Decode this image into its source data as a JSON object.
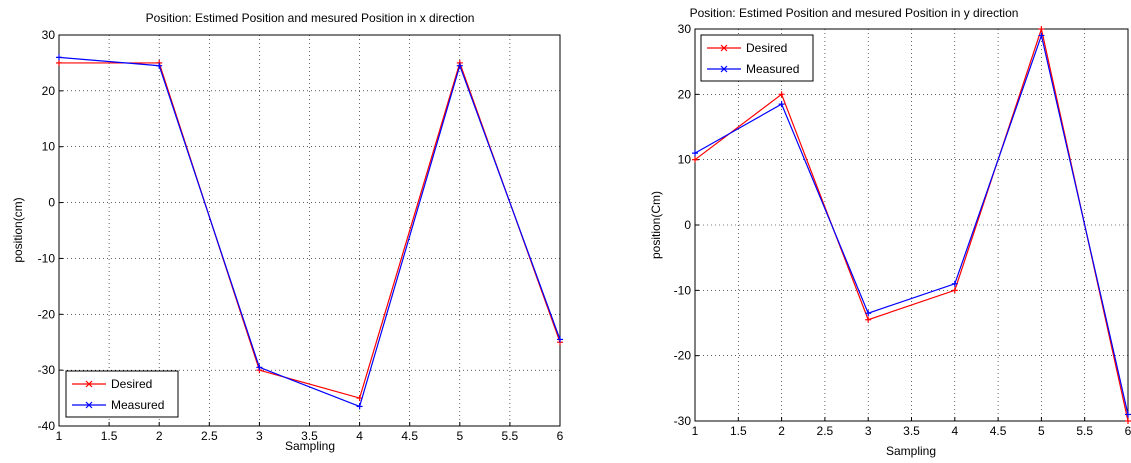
{
  "chart_data": [
    {
      "type": "line",
      "title": "Position: Estimed Position and mesured Position in x direction",
      "xlabel": "Sampling",
      "ylabel": "position(cm)",
      "xlim": [
        1,
        6
      ],
      "ylim": [
        -40,
        30
      ],
      "xticks": [
        "1",
        "1.5",
        "2",
        "2.5",
        "3",
        "3.5",
        "4",
        "4.5",
        "5",
        "5.5",
        "6"
      ],
      "yticks": [
        "30",
        "20",
        "10",
        "0",
        "-10",
        "-20",
        "-30",
        "-40"
      ],
      "grid": true,
      "legend_position": "bottom-left",
      "x": [
        1,
        2,
        3,
        4,
        5,
        6
      ],
      "series": [
        {
          "name": "Desired",
          "color": "#ff0000",
          "values": [
            25,
            25,
            -30,
            -35,
            25,
            -25
          ]
        },
        {
          "name": "Measured",
          "color": "#0000ff",
          "values": [
            26,
            24.5,
            -29.5,
            -36.5,
            24.5,
            -24.5
          ]
        }
      ]
    },
    {
      "type": "line",
      "title": "Position: Estimed Position and mesured Position in y direction",
      "xlabel": "Sampling",
      "ylabel": "position(Cm)",
      "xlim": [
        1,
        6
      ],
      "ylim": [
        -30,
        30
      ],
      "xticks": [
        "1",
        "1.5",
        "2",
        "2.5",
        "3",
        "3.5",
        "4",
        "4.5",
        "5",
        "5.5",
        "6"
      ],
      "yticks": [
        "30",
        "20",
        "10",
        "0",
        "-10",
        "-20",
        "-30"
      ],
      "grid": true,
      "legend_position": "top-left",
      "x": [
        1,
        2,
        3,
        4,
        5,
        6
      ],
      "series": [
        {
          "name": "Desired",
          "color": "#ff0000",
          "values": [
            10,
            20,
            -14.5,
            -10,
            30,
            -30
          ]
        },
        {
          "name": "Measured",
          "color": "#0000ff",
          "values": [
            11,
            18.5,
            -13.5,
            -9,
            29,
            -29
          ]
        }
      ]
    }
  ]
}
